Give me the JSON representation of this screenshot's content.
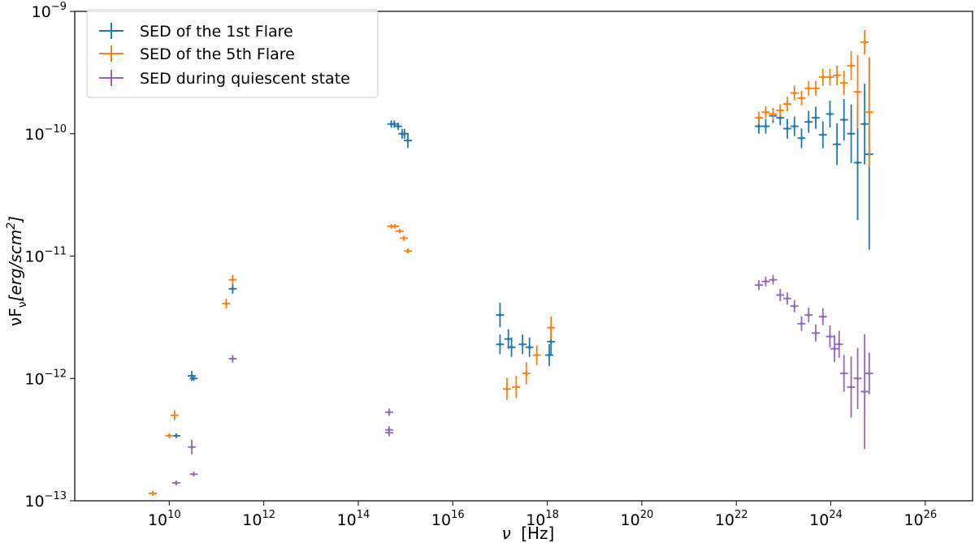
{
  "chart_data": {
    "type": "scatter",
    "x_scale": "log",
    "y_scale": "log",
    "xlim": [
      100000000.0,
      1e+27
    ],
    "ylim": [
      1e-13,
      1e-09
    ],
    "grid": false,
    "legend_position": "top-left",
    "xlabel": {
      "symbol": "ν",
      "unit": "[Hz]"
    },
    "ylabel": {
      "base": "νF",
      "sub": "ν",
      "open": "[erg/scm",
      "sup": "2",
      "close": "]"
    },
    "x_ticks": [
      {
        "base": "10",
        "exp": "10",
        "value": 10000000000.0
      },
      {
        "base": "10",
        "exp": "12",
        "value": 1000000000000.0
      },
      {
        "base": "10",
        "exp": "14",
        "value": 100000000000000.0
      },
      {
        "base": "10",
        "exp": "16",
        "value": 1e+16
      },
      {
        "base": "10",
        "exp": "18",
        "value": 1e+18
      },
      {
        "base": "10",
        "exp": "20",
        "value": 1e+20
      },
      {
        "base": "10",
        "exp": "22",
        "value": 1e+22
      },
      {
        "base": "10",
        "exp": "24",
        "value": 1e+24
      },
      {
        "base": "10",
        "exp": "26",
        "value": 1e+26
      }
    ],
    "y_ticks": [
      {
        "base": "10",
        "exp": "−13",
        "value": 1e-13
      },
      {
        "base": "10",
        "exp": "−12",
        "value": 1e-12
      },
      {
        "base": "10",
        "exp": "−11",
        "value": 1e-11
      },
      {
        "base": "10",
        "exp": "−10",
        "value": 1e-10
      },
      {
        "base": "10",
        "exp": "−9",
        "value": 1e-09
      }
    ],
    "series": [
      {
        "name": "SED of the 1st Flare",
        "color": "#1f77b4",
        "points": [
          [
            14000000000.0,
            3.4e-13,
            0.02
          ],
          [
            30000000000.0,
            1.05e-12,
            0.04
          ],
          [
            33000000000.0,
            1e-12,
            0.02
          ],
          [
            220000000000.0,
            5.4e-12,
            0.04
          ],
          [
            500000000000000.0,
            1.2e-10,
            0.03
          ],
          [
            580000000000000.0,
            1.2e-10,
            0.03
          ],
          [
            700000000000000.0,
            1.15e-10,
            0.03
          ],
          [
            850000000000000.0,
            1e-10,
            0.04
          ],
          [
            950000000000000.0,
            1e-10,
            0.04
          ],
          [
            1120000000000000.0,
            8.8e-11,
            0.06
          ],
          [
            1e+17,
            3.3e-12,
            0.1
          ],
          [
            1e+17,
            1.9e-12,
            0.08
          ],
          [
            1.5e+17,
            2.1e-12,
            0.08
          ],
          [
            1.75e+17,
            1.8e-12,
            0.08
          ],
          [
            3e+17,
            1.9e-12,
            0.08
          ],
          [
            4.2e+17,
            1.8e-12,
            0.08
          ],
          [
            1.1e+18,
            1.55e-12,
            0.09
          ],
          [
            1.2e+18,
            2e-12,
            0.11
          ],
          [
            3e+22,
            1.15e-10,
            0.06
          ],
          [
            4.2e+22,
            1.15e-10,
            0.06
          ],
          [
            6e+22,
            1.4e-10,
            0.06
          ],
          [
            8.5e+22,
            1.35e-10,
            0.06
          ],
          [
            1.2e+23,
            1.1e-10,
            0.08
          ],
          [
            1.7e+23,
            1.15e-10,
            0.08
          ],
          [
            2.4e+23,
            9.2e-11,
            0.08
          ],
          [
            3.4e+23,
            1.25e-10,
            0.09
          ],
          [
            4.8e+23,
            1.35e-10,
            0.09
          ],
          [
            6.8e+23,
            9.8e-11,
            0.11
          ],
          [
            9.6e+23,
            1.45e-10,
            0.11
          ],
          [
            1.35e+24,
            8.2e-11,
            0.17
          ],
          [
            1.9e+24,
            1.3e-10,
            0.17
          ],
          [
            2.7e+24,
            1e-10,
            0.24
          ],
          [
            3.7e+24,
            5.8e-11,
            0.47
          ],
          [
            5.2e+24,
            1.2e-10,
            0.33
          ],
          [
            6.5e+24,
            6.8e-11,
            0.78
          ]
        ]
      },
      {
        "name": "SED of the 5th Flare",
        "color": "#ff7f0e",
        "points": [
          [
            4500000000.0,
            1.15e-13,
            0.02
          ],
          [
            10000000000.0,
            3.4e-13,
            0.02
          ],
          [
            13000000000.0,
            5e-13,
            0.04
          ],
          [
            160000000000.0,
            4.1e-12,
            0.04
          ],
          [
            220000000000.0,
            6.4e-12,
            0.04
          ],
          [
            500000000000000.0,
            1.75e-11,
            0.02
          ],
          [
            600000000000000.0,
            1.75e-11,
            0.02
          ],
          [
            750000000000000.0,
            1.6e-11,
            0.02
          ],
          [
            920000000000000.0,
            1.4e-11,
            0.02
          ],
          [
            1120000000000000.0,
            1.1e-11,
            0.02
          ],
          [
            1.4e+17,
            8.2e-13,
            0.09
          ],
          [
            2.2e+17,
            8.5e-13,
            0.09
          ],
          [
            3.6e+17,
            1.1e-12,
            0.09
          ],
          [
            6e+17,
            1.55e-12,
            0.08
          ],
          [
            1.2e+18,
            2.6e-12,
            0.09
          ],
          [
            3e+22,
            1.35e-10,
            0.05
          ],
          [
            4.2e+22,
            1.5e-10,
            0.05
          ],
          [
            6e+22,
            1.45e-10,
            0.05
          ],
          [
            8.5e+22,
            1.55e-10,
            0.05
          ],
          [
            1.2e+23,
            1.75e-10,
            0.06
          ],
          [
            1.7e+23,
            2.15e-10,
            0.06
          ],
          [
            2.4e+23,
            1.95e-10,
            0.06
          ],
          [
            3.4e+23,
            2.35e-10,
            0.06
          ],
          [
            4.8e+23,
            2.35e-10,
            0.06
          ],
          [
            6.8e+23,
            2.9e-10,
            0.07
          ],
          [
            9.6e+23,
            2.9e-10,
            0.07
          ],
          [
            1.35e+24,
            3e-10,
            0.08
          ],
          [
            1.9e+24,
            2.6e-10,
            0.1
          ],
          [
            2.7e+24,
            3.6e-10,
            0.12
          ],
          [
            3.7e+24,
            2.2e-10,
            0.3
          ],
          [
            5.2e+24,
            5.6e-10,
            0.1
          ],
          [
            6.5e+24,
            1.5e-10,
            0.45
          ]
        ]
      },
      {
        "name": "SED during quiescent state",
        "color": "#9467bd",
        "points": [
          [
            14000000000.0,
            1.4e-13,
            0.02
          ],
          [
            30000000000.0,
            2.75e-13,
            0.06
          ],
          [
            33000000000.0,
            1.65e-13,
            0.02
          ],
          [
            220000000000.0,
            1.45e-12,
            0.03
          ],
          [
            450000000000000.0,
            5.3e-13,
            0.03
          ],
          [
            450000000000000.0,
            3.8e-13,
            0.03
          ],
          [
            450000000000000.0,
            3.6e-13,
            0.03
          ],
          [
            3e+22,
            5.8e-12,
            0.04
          ],
          [
            4.2e+22,
            6.2e-12,
            0.04
          ],
          [
            6e+22,
            6.4e-12,
            0.04
          ],
          [
            8.5e+22,
            4.8e-12,
            0.05
          ],
          [
            1.2e+23,
            4.5e-12,
            0.05
          ],
          [
            1.7e+23,
            3.9e-12,
            0.05
          ],
          [
            2.4e+23,
            2.8e-12,
            0.06
          ],
          [
            3.4e+23,
            3.3e-12,
            0.06
          ],
          [
            4.8e+23,
            2.35e-12,
            0.07
          ],
          [
            6.8e+23,
            3.2e-12,
            0.07
          ],
          [
            9.6e+23,
            2.2e-12,
            0.09
          ],
          [
            1.2e+24,
            1.75e-12,
            0.11
          ],
          [
            1.5e+24,
            1.9e-12,
            0.11
          ],
          [
            1.9e+24,
            1.1e-12,
            0.15
          ],
          [
            2.7e+24,
            8.5e-13,
            0.25
          ],
          [
            3.7e+24,
            1e-12,
            0.25
          ],
          [
            5.2e+24,
            7.8e-13,
            0.47
          ],
          [
            6.5e+24,
            1.1e-12,
            0.17
          ]
        ]
      }
    ]
  }
}
